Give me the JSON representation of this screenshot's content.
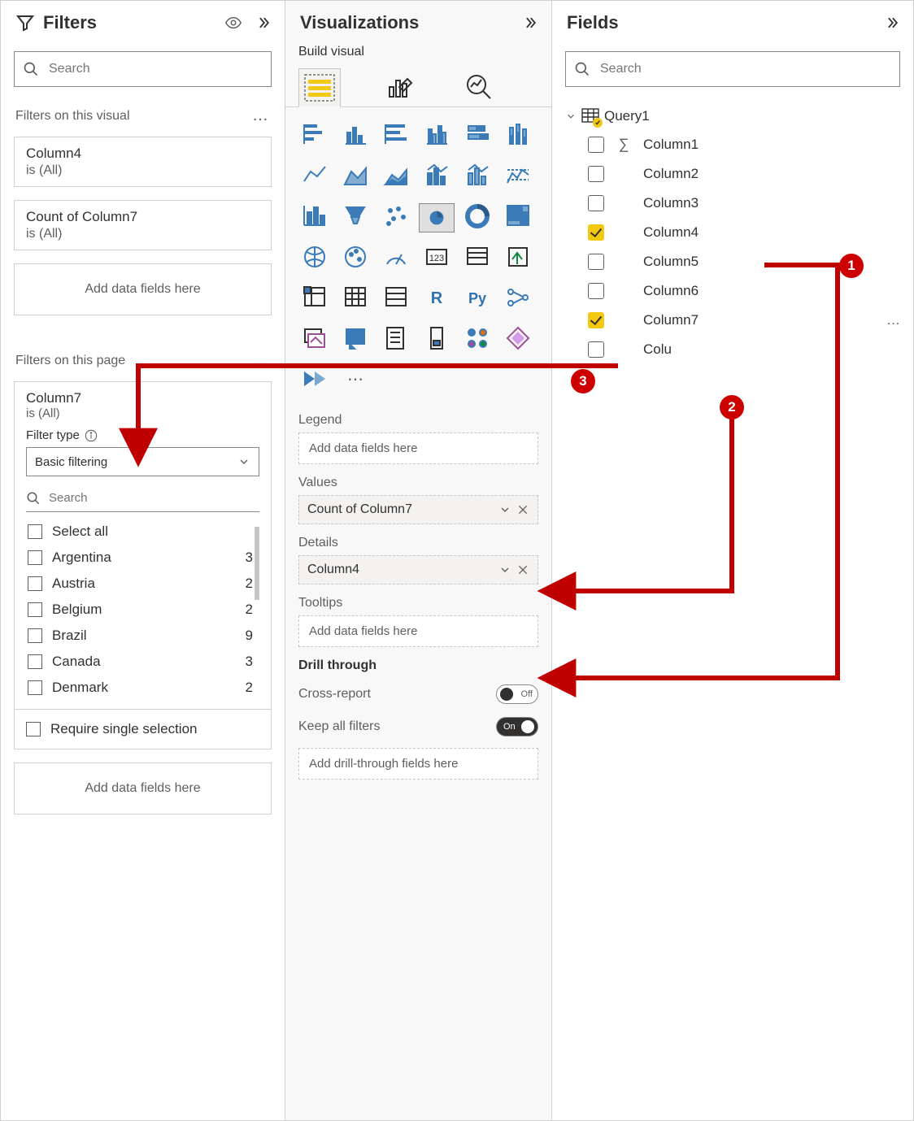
{
  "colors": {
    "accent_blue": "#3a7bb8",
    "annotation_red": "#c00000",
    "checkbox_yellow": "#f2c811",
    "border_gray": "#d0d0d0",
    "text_secondary": "#605e5c"
  },
  "filters": {
    "title": "Filters",
    "search_placeholder": "Search",
    "visual_section": "Filters on this visual",
    "visual_filters": [
      {
        "name": "Column4",
        "value": "is (All)"
      },
      {
        "name": "Count of Column7",
        "value": "is (All)"
      }
    ],
    "add_fields": "Add data fields here",
    "page_section": "Filters on this page",
    "page_filter": {
      "name": "Column7",
      "value": "is (All)",
      "type_label": "Filter type",
      "type_value": "Basic filtering",
      "search_placeholder": "Search",
      "options": [
        {
          "label": "Select all",
          "count": ""
        },
        {
          "label": "Argentina",
          "count": "3"
        },
        {
          "label": "Austria",
          "count": "2"
        },
        {
          "label": "Belgium",
          "count": "2"
        },
        {
          "label": "Brazil",
          "count": "9"
        },
        {
          "label": "Canada",
          "count": "3"
        },
        {
          "label": "Denmark",
          "count": "2"
        }
      ],
      "require_single": "Require single selection"
    }
  },
  "viz": {
    "title": "Visualizations",
    "subtitle": "Build visual",
    "wells": {
      "legend": {
        "label": "Legend",
        "placeholder": "Add data fields here"
      },
      "values": {
        "label": "Values",
        "item": "Count of Column7"
      },
      "details": {
        "label": "Details",
        "item": "Column4"
      },
      "tooltips": {
        "label": "Tooltips",
        "placeholder": "Add data fields here"
      }
    },
    "drill": {
      "label": "Drill through",
      "cross_report": "Cross-report",
      "cross_report_state": "Off",
      "keep_filters": "Keep all filters",
      "keep_filters_state": "On",
      "placeholder": "Add drill-through fields here"
    }
  },
  "fields": {
    "title": "Fields",
    "search_placeholder": "Search",
    "table": "Query1",
    "columns": [
      {
        "name": "Column1",
        "checked": false,
        "sigma": true
      },
      {
        "name": "Column2",
        "checked": false,
        "sigma": false
      },
      {
        "name": "Column3",
        "checked": false,
        "sigma": false
      },
      {
        "name": "Column4",
        "checked": true,
        "sigma": false
      },
      {
        "name": "Column5",
        "checked": false,
        "sigma": false
      },
      {
        "name": "Column6",
        "checked": false,
        "sigma": false
      },
      {
        "name": "Column7",
        "checked": true,
        "sigma": false,
        "more": true
      },
      {
        "name": "Colu",
        "checked": false,
        "sigma": false
      }
    ]
  },
  "annotations": {
    "b1": "1",
    "b2": "2",
    "b3": "3"
  }
}
